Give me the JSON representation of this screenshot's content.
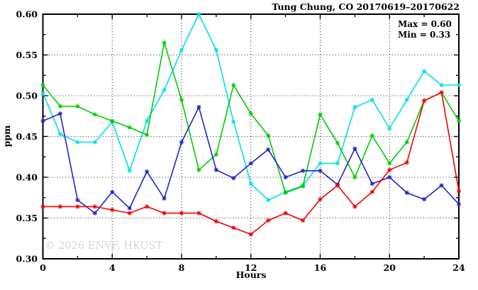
{
  "title": "Tung Chung, CO 20170619–20170622",
  "stats": {
    "max_label": "Max = 0.60",
    "min_label": "Min = 0.33"
  },
  "watermark": "© 2026 ENVF, HKUST",
  "chart_data": {
    "type": "line",
    "title": "Tung Chung, CO 20170619–20170622",
    "xlabel": "Hours",
    "ylabel": "ppm",
    "xlim": [
      0,
      24
    ],
    "ylim": [
      0.3,
      0.6
    ],
    "x_major_ticks": [
      0,
      4,
      8,
      12,
      16,
      20,
      24
    ],
    "x_tick_labels": [
      "0",
      "4",
      "8",
      "12",
      "16",
      "20",
      "24"
    ],
    "x_minor_ticks": [
      2,
      6,
      10,
      14,
      18,
      22
    ],
    "y_major_ticks": [
      0.3,
      0.35,
      0.4,
      0.45,
      0.5,
      0.55,
      0.6
    ],
    "y_tick_labels": [
      "0.30",
      "0.35",
      "0.40",
      "0.45",
      "0.50",
      "0.55",
      "0.60"
    ],
    "y_minor_step": 0.025,
    "grid": "dotted lines at major ticks, mirrored inward ticks on all four sides",
    "legend_position": "none",
    "annotations": [
      "Max = 0.60",
      "Min = 0.33"
    ],
    "marker": "asterisk",
    "x": [
      0,
      1,
      2,
      3,
      4,
      5,
      6,
      7,
      8,
      9,
      10,
      11,
      12,
      13,
      14,
      15,
      16,
      17,
      18,
      19,
      20,
      21,
      22,
      23,
      24
    ],
    "series": [
      {
        "name": "series-cyan",
        "color": "#00dfe8",
        "values": [
          0.503,
          0.453,
          0.443,
          0.443,
          0.468,
          0.408,
          0.469,
          0.507,
          0.556,
          0.6,
          0.556,
          0.468,
          0.392,
          0.372,
          0.382,
          0.39,
          0.417,
          0.417,
          0.486,
          0.495,
          0.46,
          0.495,
          0.53,
          0.513,
          0.513
        ]
      },
      {
        "name": "series-green",
        "color": "#00cc00",
        "values": [
          0.513,
          0.487,
          0.487,
          0.477,
          0.469,
          0.461,
          0.452,
          0.565,
          0.495,
          0.409,
          0.428,
          0.513,
          0.478,
          0.451,
          0.381,
          0.389,
          0.477,
          0.442,
          0.4,
          0.451,
          0.417,
          0.443,
          0.494,
          0.504,
          0.469
        ]
      },
      {
        "name": "series-blue",
        "color": "#2222cc",
        "values": [
          0.469,
          0.478,
          0.372,
          0.356,
          0.382,
          0.362,
          0.407,
          0.374,
          0.443,
          0.486,
          0.409,
          0.399,
          0.417,
          0.434,
          0.4,
          0.408,
          0.408,
          0.391,
          0.435,
          0.392,
          0.4,
          0.381,
          0.373,
          0.39,
          0.367
        ]
      },
      {
        "name": "series-red",
        "color": "#f00000",
        "values": [
          0.364,
          0.364,
          0.364,
          0.364,
          0.36,
          0.356,
          0.364,
          0.356,
          0.356,
          0.356,
          0.346,
          0.338,
          0.33,
          0.347,
          0.356,
          0.347,
          0.373,
          0.39,
          0.364,
          0.382,
          0.409,
          0.418,
          0.494,
          0.504,
          0.383
        ]
      }
    ]
  }
}
